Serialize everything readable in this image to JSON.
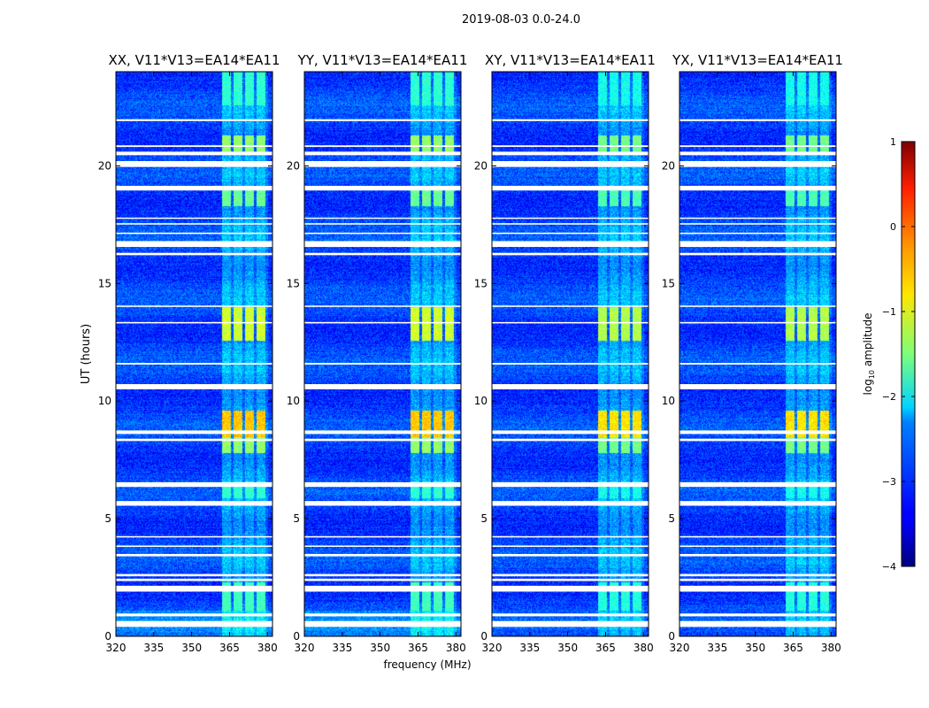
{
  "figure": {
    "suptitle": "2019-08-03 0.0-24.0",
    "xlabel": "frequency (MHz)",
    "ylabel": "UT (hours)"
  },
  "chart_data": {
    "type": "heatmap",
    "x": {
      "label": "frequency (MHz)",
      "lim": [
        320,
        382
      ],
      "ticks": [
        320,
        335,
        350,
        365,
        380
      ]
    },
    "y": {
      "label": "UT (hours)",
      "lim": [
        0,
        24
      ],
      "ticks": [
        0,
        5,
        10,
        15,
        20
      ]
    },
    "panels": [
      {
        "title": "XX, V11*V13=EA14*EA11"
      },
      {
        "title": "YY, V11*V13=EA14*EA11"
      },
      {
        "title": "XY, V11*V13=EA14*EA11"
      },
      {
        "title": "YX, V11*V13=EA14*EA11"
      }
    ],
    "colorbar": {
      "label": "log10 amplitude",
      "label_main": "log",
      "label_sub": "10",
      "label_rest": " amplitude",
      "range": [
        -4,
        1
      ],
      "ticks": [
        -4,
        -3,
        -2,
        -1,
        0,
        1
      ],
      "colormap": "jet"
    },
    "rfi_band_mhz": [
      362,
      380
    ],
    "flagged_gaps_hours": [
      [
        0.4,
        0.65
      ],
      [
        0.85,
        0.97
      ],
      [
        1.9,
        2.15
      ],
      [
        2.35,
        2.45
      ],
      [
        2.55,
        2.65
      ],
      [
        3.4,
        3.5
      ],
      [
        3.8,
        3.86
      ],
      [
        4.2,
        4.26
      ],
      [
        5.55,
        5.75
      ],
      [
        6.35,
        6.55
      ],
      [
        8.3,
        8.4
      ],
      [
        8.6,
        8.75
      ],
      [
        10.5,
        10.72
      ],
      [
        11.55,
        11.62
      ],
      [
        13.3,
        13.36
      ],
      [
        14,
        14.06
      ],
      [
        16.2,
        16.3
      ],
      [
        16.55,
        16.8
      ],
      [
        17.1,
        17.16
      ],
      [
        17.5,
        17.56
      ],
      [
        17.75,
        17.8
      ],
      [
        18.95,
        19.15
      ],
      [
        19.95,
        20.2
      ],
      [
        20.45,
        20.6
      ],
      [
        20.8,
        20.87
      ],
      [
        21.9,
        21.98
      ]
    ],
    "enhanced_rfi_hours": [
      {
        "start": 1.1,
        "end": 2.3,
        "level": -1.8
      },
      {
        "start": 5.9,
        "end": 6.6,
        "level": -1.9
      },
      {
        "start": 7.8,
        "end": 8.5,
        "level": -1.4
      },
      {
        "start": 8.5,
        "end": 9.6,
        "level": -0.6
      },
      {
        "start": 12.6,
        "end": 14.0,
        "level": -1.1
      },
      {
        "start": 18.3,
        "end": 19.1,
        "level": -1.6
      },
      {
        "start": 20.5,
        "end": 21.3,
        "level": -1.4
      },
      {
        "start": 22.6,
        "end": 24.0,
        "level": -1.9
      }
    ]
  }
}
